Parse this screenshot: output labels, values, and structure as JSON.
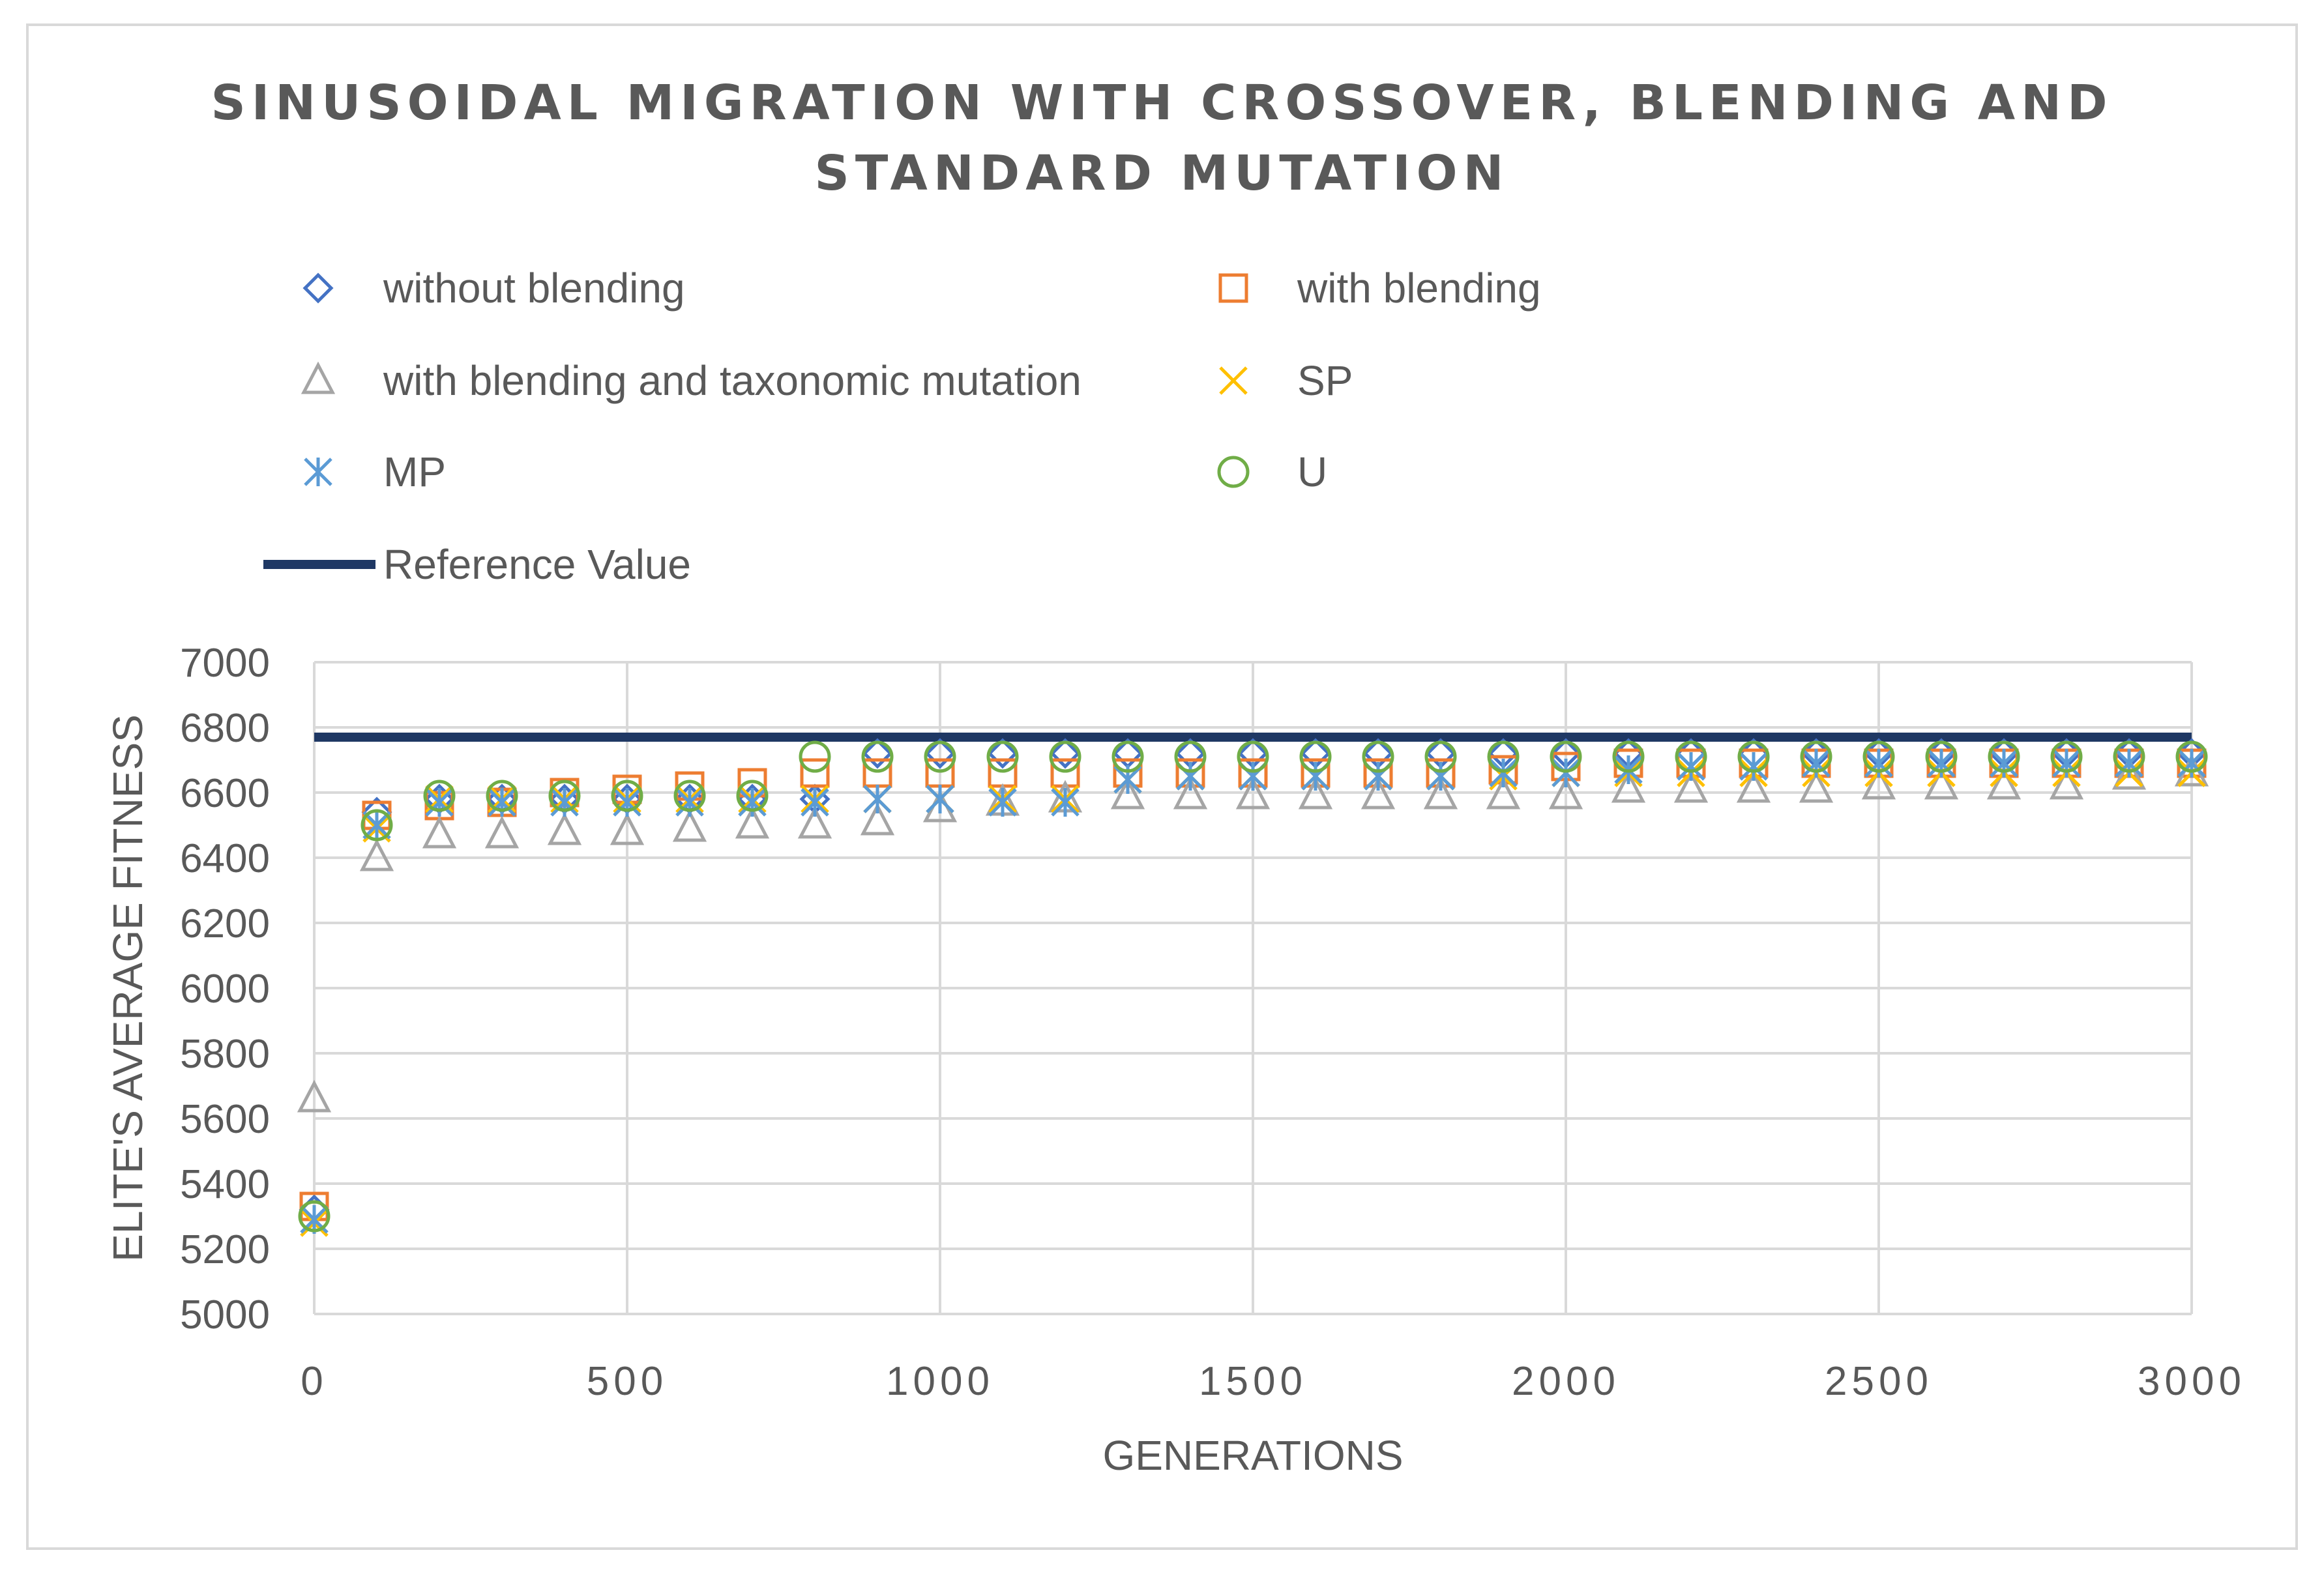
{
  "chart_data": {
    "type": "scatter",
    "title_lines": [
      "SINUSOIDAL MIGRATION WITH CROSSOVER, BLENDING AND",
      "STANDARD MUTATION"
    ],
    "xlabel": "GENERATIONS",
    "ylabel": "ELITE'S AVERAGE FITNESS",
    "xlim": [
      0,
      3000
    ],
    "ylim": [
      5000,
      7000
    ],
    "xticks": [
      "0",
      "500",
      "1000",
      "1500",
      "2000",
      "2500",
      "3000"
    ],
    "yticks": [
      "5000",
      "5200",
      "5400",
      "5600",
      "5800",
      "6000",
      "6200",
      "6400",
      "6600",
      "6800",
      "7000"
    ],
    "grid": true,
    "x": [
      0,
      100,
      200,
      300,
      400,
      500,
      600,
      700,
      800,
      900,
      1000,
      1100,
      1200,
      1300,
      1400,
      1500,
      1600,
      1700,
      1800,
      1900,
      2000,
      2100,
      2200,
      2300,
      2400,
      2500,
      2600,
      2700,
      2800,
      2900,
      3000
    ],
    "series": [
      {
        "name": "without blending",
        "marker": "diamond",
        "color": "#4472c4",
        "values": [
          5320,
          6540,
          6580,
          6580,
          6580,
          6580,
          6580,
          6580,
          6580,
          6720,
          6720,
          6720,
          6720,
          6720,
          6720,
          6720,
          6720,
          6720,
          6720,
          6720,
          6720,
          6720,
          6720,
          6720,
          6720,
          6720,
          6720,
          6720,
          6720,
          6720,
          6720
        ]
      },
      {
        "name": "with blending",
        "marker": "square",
        "color": "#ed7d31",
        "values": [
          5330,
          6530,
          6560,
          6570,
          6600,
          6610,
          6620,
          6630,
          6660,
          6660,
          6660,
          6660,
          6660,
          6660,
          6660,
          6660,
          6660,
          6660,
          6660,
          6670,
          6680,
          6690,
          6690,
          6690,
          6690,
          6690,
          6690,
          6690,
          6690,
          6690,
          6690
        ]
      },
      {
        "name": "with blending and  taxonomic mutation",
        "marker": "triangle",
        "color": "#a5a5a5",
        "values": [
          5660,
          6400,
          6470,
          6470,
          6480,
          6480,
          6490,
          6500,
          6500,
          6510,
          6550,
          6570,
          6580,
          6590,
          6590,
          6590,
          6590,
          6590,
          6590,
          6590,
          6590,
          6610,
          6610,
          6610,
          6610,
          6620,
          6620,
          6620,
          6620,
          6650,
          6660
        ]
      },
      {
        "name": "SP",
        "marker": "x",
        "color": "#ffc000",
        "values": [
          5280,
          6490,
          6580,
          6580,
          6580,
          6580,
          6580,
          6580,
          6580,
          6580,
          6580,
          6580,
          6580,
          6640,
          6650,
          6650,
          6650,
          6650,
          6650,
          6650,
          6660,
          6660,
          6660,
          6660,
          6660,
          6660,
          6660,
          6660,
          6660,
          6660,
          6660
        ]
      },
      {
        "name": "MP",
        "marker": "asterisk",
        "color": "#5b9bd5",
        "values": [
          5290,
          6500,
          6570,
          6570,
          6570,
          6570,
          6570,
          6570,
          6570,
          6580,
          6580,
          6570,
          6570,
          6640,
          6650,
          6650,
          6650,
          6650,
          6650,
          6660,
          6660,
          6670,
          6680,
          6680,
          6690,
          6690,
          6690,
          6690,
          6690,
          6690,
          6690
        ]
      },
      {
        "name": "U",
        "marker": "circle",
        "color": "#70ad47",
        "values": [
          5300,
          6500,
          6590,
          6590,
          6590,
          6590,
          6590,
          6590,
          6710,
          6710,
          6710,
          6710,
          6710,
          6710,
          6710,
          6710,
          6710,
          6710,
          6710,
          6710,
          6710,
          6710,
          6710,
          6710,
          6710,
          6710,
          6710,
          6710,
          6710,
          6710,
          6710
        ]
      }
    ],
    "reference": {
      "name": "Reference Value",
      "color": "#1f3864",
      "value": 6770
    },
    "legend_position": "top"
  }
}
